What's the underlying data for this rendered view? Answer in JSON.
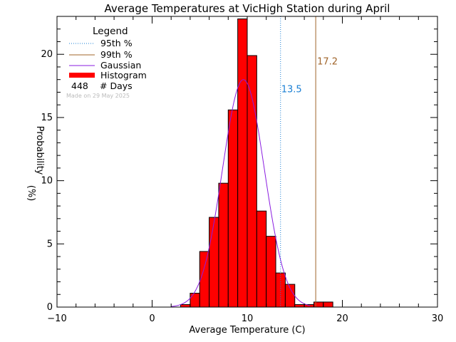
{
  "chart_data": {
    "type": "bar",
    "title": "Average Temperatures at VicHigh Station during April",
    "xlabel": "Average Temperature (C)",
    "ylabel_line1": "Probability",
    "ylabel_line2": "(%)",
    "xlim": [
      -10,
      30
    ],
    "ylim": [
      0,
      23
    ],
    "x_ticks": [
      -10,
      0,
      10,
      20,
      30
    ],
    "y_ticks": [
      0,
      5,
      10,
      15,
      20
    ],
    "bin_width": 1,
    "histogram": [
      {
        "x0": 3,
        "x1": 4,
        "value": 0.2
      },
      {
        "x0": 4,
        "x1": 5,
        "value": 1.1
      },
      {
        "x0": 5,
        "x1": 6,
        "value": 4.4
      },
      {
        "x0": 6,
        "x1": 7,
        "value": 7.1
      },
      {
        "x0": 7,
        "x1": 8,
        "value": 9.8
      },
      {
        "x0": 8,
        "x1": 9,
        "value": 15.6
      },
      {
        "x0": 9,
        "x1": 10,
        "value": 22.8
      },
      {
        "x0": 10,
        "x1": 11,
        "value": 19.9
      },
      {
        "x0": 11,
        "x1": 12,
        "value": 7.6
      },
      {
        "x0": 12,
        "x1": 13,
        "value": 5.6
      },
      {
        "x0": 13,
        "x1": 14,
        "value": 2.7
      },
      {
        "x0": 14,
        "x1": 15,
        "value": 1.8
      },
      {
        "x0": 15,
        "x1": 16,
        "value": 0.2
      },
      {
        "x0": 16,
        "x1": 17,
        "value": 0.2
      },
      {
        "x0": 17,
        "x1": 18,
        "value": 0.4
      },
      {
        "x0": 18,
        "x1": 19,
        "value": 0.4
      }
    ],
    "gaussian": {
      "mean": 9.6,
      "sd": 2.2,
      "peak": 18.0,
      "color": "#8a1de0"
    },
    "percentile_95": {
      "value": 13.5,
      "label": "13.5",
      "color": "#1a7fd4"
    },
    "percentile_99": {
      "value": 17.2,
      "label": "17.2",
      "color": "#a0642a"
    },
    "histogram_color": "#ff0000",
    "legend": {
      "title": "Legend",
      "items": [
        {
          "label": "95th %",
          "style": "dotted",
          "color": "#1a7fd4"
        },
        {
          "label": "99th %",
          "style": "solid",
          "color": "#a0642a"
        },
        {
          "label": "Gaussian",
          "style": "solid",
          "color": "#8a1de0"
        },
        {
          "label": "Histogram",
          "style": "thick",
          "color": "#ff0000"
        }
      ],
      "days_count": "448",
      "days_label": "# Days",
      "made_on": "Made on 29 May 2025"
    }
  }
}
